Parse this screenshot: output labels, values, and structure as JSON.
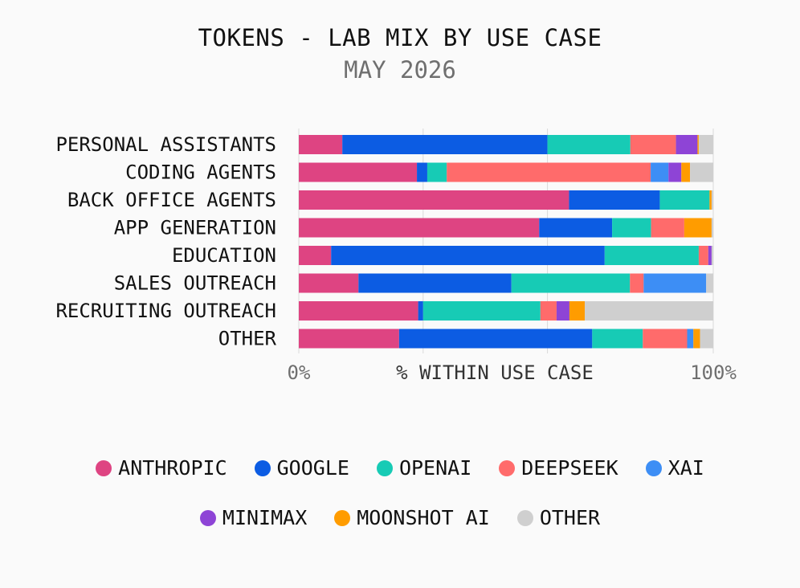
{
  "title": "TOKENS - LAB MIX BY USE CASE",
  "subtitle": "MAY 2026",
  "chart_data": {
    "type": "bar",
    "orientation": "horizontal",
    "stacked": true,
    "normalized": true,
    "xlabel": "% WITHIN USE CASE",
    "x_ticks": [
      "0%",
      "100%"
    ],
    "xlim": [
      0,
      100
    ],
    "grid": true,
    "legend_position": "bottom",
    "categories": [
      "PERSONAL ASSISTANTS",
      "CODING AGENTS",
      "BACK OFFICE AGENTS",
      "APP GENERATION",
      "EDUCATION",
      "SALES OUTREACH",
      "RECRUITING OUTREACH",
      "OTHER"
    ],
    "series": [
      {
        "name": "ANTHROPIC",
        "color": "#de4482",
        "values": [
          10.5,
          28.5,
          65.2,
          58.0,
          7.8,
          14.4,
          28.8,
          24.2
        ]
      },
      {
        "name": "GOOGLE",
        "color": "#0c5ce3",
        "values": [
          49.5,
          2.5,
          21.9,
          17.6,
          66.0,
          36.9,
          1.2,
          46.6
        ]
      },
      {
        "name": "OPENAI",
        "color": "#17cbb5",
        "values": [
          20.0,
          4.7,
          12.0,
          9.4,
          22.7,
          28.6,
          28.3,
          12.2
        ]
      },
      {
        "name": "DEEPSEEK",
        "color": "#ff6b6b",
        "values": [
          11.0,
          49.2,
          0.0,
          8.0,
          2.3,
          3.3,
          3.9,
          10.7
        ]
      },
      {
        "name": "XAI",
        "color": "#3d8ef5",
        "values": [
          0.0,
          4.3,
          0.0,
          0.0,
          0.0,
          15.1,
          0.0,
          1.5
        ]
      },
      {
        "name": "MINIMAX",
        "color": "#8e44d6",
        "values": [
          5.2,
          3.1,
          0.0,
          0.0,
          0.8,
          0.0,
          3.1,
          0.0
        ]
      },
      {
        "name": "MOONSHOT AI",
        "color": "#ff9c00",
        "values": [
          0.3,
          2.1,
          0.5,
          6.6,
          0.0,
          0.0,
          3.7,
          1.6
        ]
      },
      {
        "name": "OTHER",
        "color": "#cfcfcf",
        "values": [
          3.5,
          5.6,
          0.4,
          0.4,
          0.4,
          1.7,
          31.0,
          3.2
        ]
      }
    ]
  }
}
